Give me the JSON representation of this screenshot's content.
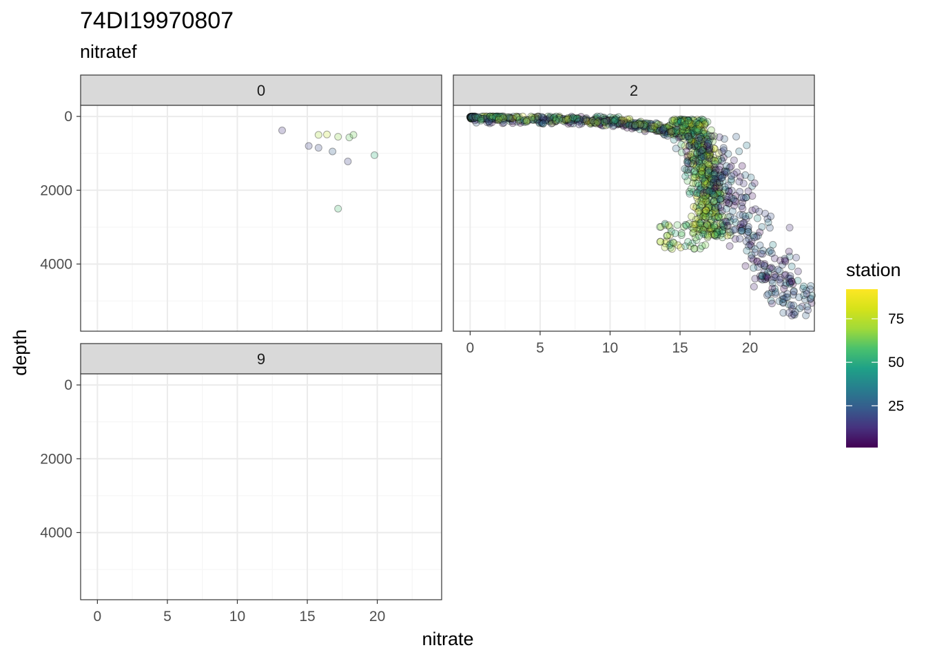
{
  "title": "74DI19970807",
  "subtitle": "nitratef",
  "colors": {
    "strip_fill": "#d9d9d9",
    "grid_major": "#ebebeb",
    "grid_minor": "#f5f5f5",
    "panel_border": "#333333",
    "point_stroke": "#000000"
  },
  "chart_data": {
    "type": "scatter",
    "facet_variable": "nitratef",
    "xlabel": "nitrate",
    "ylabel": "depth",
    "xlim": [
      -1.2,
      24.6
    ],
    "ylim": [
      -300,
      5820
    ],
    "y_reversed": true,
    "x_ticks": [
      0,
      5,
      10,
      15,
      20
    ],
    "x_tick_labels": [
      "0",
      "5",
      "10",
      "15",
      "20"
    ],
    "y_ticks": [
      0,
      2000,
      4000
    ],
    "y_tick_labels": [
      "0",
      "2000",
      "4000"
    ],
    "grid": true,
    "legend": {
      "title": "station",
      "position": "right",
      "type": "colorbar",
      "palette": "viridis",
      "range": [
        1,
        92
      ],
      "breaks": [
        25,
        50,
        75
      ],
      "break_labels": [
        "25",
        "50",
        "75"
      ]
    },
    "panels": [
      {
        "label": "0",
        "points": [
          {
            "x": 13.2,
            "y": 380,
            "station": 15
          },
          {
            "x": 15.1,
            "y": 800,
            "station": 20
          },
          {
            "x": 15.8,
            "y": 850,
            "station": 22
          },
          {
            "x": 15.8,
            "y": 500,
            "station": 80
          },
          {
            "x": 16.4,
            "y": 490,
            "station": 84
          },
          {
            "x": 16.8,
            "y": 950,
            "station": 28
          },
          {
            "x": 17.2,
            "y": 550,
            "station": 76
          },
          {
            "x": 17.9,
            "y": 1220,
            "station": 20
          },
          {
            "x": 18.0,
            "y": 570,
            "station": 70
          },
          {
            "x": 18.3,
            "y": 500,
            "station": 72
          },
          {
            "x": 19.8,
            "y": 1050,
            "station": 60
          },
          {
            "x": 17.2,
            "y": 2500,
            "station": 64
          }
        ]
      },
      {
        "label": "2",
        "points": []
      },
      {
        "label": "9",
        "points": []
      }
    ]
  }
}
